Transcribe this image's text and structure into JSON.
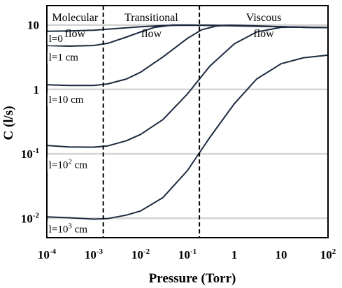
{
  "chart_data": {
    "type": "line",
    "xlabel": "Pressure (Torr)",
    "ylabel": "C (l/s)",
    "xscale": "log",
    "yscale": "log",
    "xlim": [
      0.0001,
      100
    ],
    "ylim": [
      0.005,
      20
    ],
    "grid": "horizontal",
    "x_ticks": [
      {
        "value": 0.0001,
        "base": "10",
        "exp": "-4"
      },
      {
        "value": 0.001,
        "base": "10",
        "exp": "-3"
      },
      {
        "value": 0.01,
        "base": "10",
        "exp": "-2"
      },
      {
        "value": 0.1,
        "base": "10",
        "exp": "-1"
      },
      {
        "value": 1,
        "base": "1",
        "exp": ""
      },
      {
        "value": 10,
        "base": "10",
        "exp": ""
      },
      {
        "value": 100,
        "base": "10",
        "exp": "2"
      }
    ],
    "y_ticks": [
      {
        "value": 0.01,
        "base": "10",
        "exp": "-2"
      },
      {
        "value": 0.1,
        "base": "10",
        "exp": "-1"
      },
      {
        "value": 1,
        "base": "1",
        "exp": ""
      },
      {
        "value": 10,
        "base": "10",
        "exp": ""
      }
    ],
    "regions": [
      {
        "line1": "Molecular",
        "line2": "flow",
        "x_from": 0.0001,
        "x_to": 0.0016
      },
      {
        "line1": "Transitional",
        "line2": "flow",
        "x_from": 0.0016,
        "x_to": 0.18
      },
      {
        "line1": "Viscous",
        "line2": "flow",
        "x_from": 0.18,
        "x_to": 100
      }
    ],
    "boundaries": [
      0.0016,
      0.18
    ],
    "series": [
      {
        "label_parts": [
          "l=0"
        ],
        "label_x": 0.00011,
        "label_y": 6.2,
        "x": [
          0.0001,
          0.0003,
          0.001,
          0.003,
          0.01,
          0.03,
          0.1,
          0.3,
          1,
          3,
          10,
          30,
          100
        ],
        "y": [
          8.0,
          8.1,
          8.3,
          8.8,
          9.4,
          9.8,
          9.9,
          9.85,
          9.7,
          9.55,
          9.4,
          9.25,
          9.1
        ]
      },
      {
        "label_parts": [
          "l=1 cm"
        ],
        "label_x": 0.00011,
        "label_y": 3.2,
        "x": [
          0.0001,
          0.0003,
          0.001,
          0.002,
          0.005,
          0.01,
          0.02,
          0.05,
          0.1,
          0.3,
          1,
          3,
          10,
          30,
          100
        ],
        "y": [
          4.8,
          4.7,
          4.8,
          5.2,
          6.5,
          7.8,
          9.2,
          10.0,
          10.0,
          9.9,
          9.8,
          9.6,
          9.4,
          9.2,
          9.1
        ]
      },
      {
        "label_parts": [
          "l=10 cm"
        ],
        "label_x": 0.00011,
        "label_y": 0.7,
        "x": [
          0.0001,
          0.0003,
          0.001,
          0.002,
          0.005,
          0.01,
          0.03,
          0.1,
          0.2,
          0.4,
          0.7,
          1,
          3,
          10,
          30,
          100
        ],
        "y": [
          1.18,
          1.15,
          1.15,
          1.22,
          1.45,
          1.85,
          3.2,
          6.2,
          8.4,
          9.6,
          9.9,
          9.9,
          9.7,
          9.4,
          9.2,
          9.1
        ]
      },
      {
        "label_parts": [
          "l=10",
          "2",
          " cm"
        ],
        "label_x": 0.00011,
        "label_y": 0.068,
        "x": [
          0.0001,
          0.0003,
          0.001,
          0.002,
          0.005,
          0.01,
          0.03,
          0.1,
          0.3,
          1,
          3,
          10,
          30,
          100
        ],
        "y": [
          0.135,
          0.128,
          0.127,
          0.133,
          0.16,
          0.2,
          0.34,
          0.85,
          2.3,
          5.1,
          7.8,
          9.2,
          9.3,
          9.1
        ]
      },
      {
        "label_parts": [
          "l=10",
          "3",
          " cm"
        ],
        "label_x": 0.00011,
        "label_y": 0.0068,
        "x": [
          0.0001,
          0.0003,
          0.001,
          0.002,
          0.005,
          0.01,
          0.03,
          0.1,
          0.3,
          1,
          3,
          10,
          30,
          100
        ],
        "y": [
          0.0105,
          0.0102,
          0.0097,
          0.0099,
          0.0112,
          0.013,
          0.021,
          0.055,
          0.18,
          0.6,
          1.45,
          2.5,
          3.1,
          3.4
        ]
      }
    ]
  }
}
